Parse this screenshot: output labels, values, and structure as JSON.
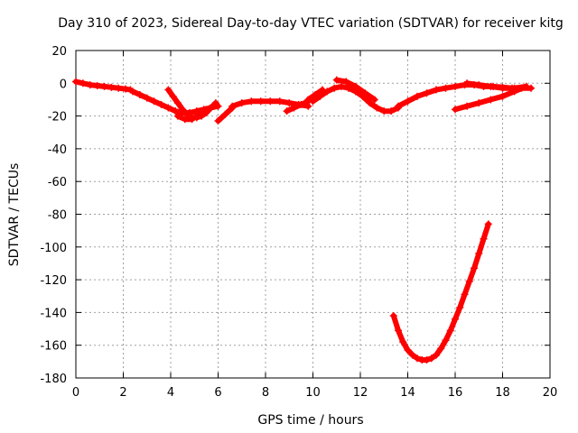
{
  "chart_data": {
    "type": "scatter",
    "title": "Day 310 of 2023, Sidereal Day-to-day VTEC variation (SDTVAR) for receiver kitg",
    "xlabel": "GPS time / hours",
    "ylabel": "SDTVAR / TECUs",
    "xlim": [
      0,
      20
    ],
    "ylim": [
      -180,
      20
    ],
    "xticks": [
      "0",
      "2",
      "4",
      "6",
      "8",
      "10",
      "12",
      "14",
      "16",
      "18",
      "20"
    ],
    "yticks": [
      "20",
      "0",
      "-20",
      "-40",
      "-60",
      "-80",
      "-100",
      "-120",
      "-140",
      "-160",
      "-180"
    ],
    "grid": true,
    "marker_color": "#ff0000",
    "series": [
      {
        "x": [
          0.0,
          0.3,
          0.6,
          0.9,
          1.2,
          1.5,
          1.8,
          2.1,
          2.3
        ],
        "y": [
          1,
          0,
          -1,
          -1.5,
          -2,
          -2.5,
          -3,
          -3.5,
          -4
        ]
      },
      {
        "x": [
          2.4,
          2.7,
          3.0,
          3.3,
          3.6,
          3.9,
          4.2,
          4.5,
          4.8,
          5.1,
          5.4,
          5.7,
          6.0
        ],
        "y": [
          -5,
          -7,
          -9,
          -11,
          -13,
          -15,
          -17,
          -18,
          -18,
          -17,
          -16,
          -15,
          -14
        ]
      },
      {
        "x": [
          3.9,
          4.1,
          4.3,
          4.5,
          4.7,
          4.9,
          5.1,
          5.3,
          5.5,
          5.7,
          5.9
        ],
        "y": [
          -4,
          -8,
          -12,
          -16,
          -19,
          -21,
          -21,
          -20,
          -18,
          -15,
          -12
        ]
      },
      {
        "x": [
          4.3,
          4.6,
          4.9,
          5.2,
          5.5,
          5.8
        ],
        "y": [
          -20,
          -22,
          -22,
          -19,
          -16,
          -14
        ]
      },
      {
        "x": [
          6.0,
          6.3,
          6.6
        ],
        "y": [
          -23,
          -19,
          -15
        ]
      },
      {
        "x": [
          6.6,
          7.0,
          7.4,
          7.8,
          8.2,
          8.6,
          9.0,
          9.4,
          9.8
        ],
        "y": [
          -14,
          -12,
          -11,
          -11,
          -11,
          -11,
          -12,
          -13,
          -14
        ]
      },
      {
        "x": [
          8.9,
          9.2,
          9.5,
          9.8
        ],
        "y": [
          -17,
          -15,
          -13,
          -11
        ]
      },
      {
        "x": [
          9.8,
          10.1,
          10.4
        ],
        "y": [
          -10,
          -7,
          -4
        ]
      },
      {
        "x": [
          10.0,
          10.3,
          10.6,
          10.9,
          11.2,
          11.5,
          11.8,
          12.1,
          12.4,
          12.7,
          13.0,
          13.3,
          13.6
        ],
        "y": [
          -11,
          -8,
          -5,
          -3,
          -2,
          -3,
          -5,
          -8,
          -12,
          -15,
          -17,
          -17,
          -15
        ]
      },
      {
        "x": [
          11.0,
          11.4,
          11.8,
          12.2,
          12.6
        ],
        "y": [
          2,
          1,
          -2,
          -6,
          -10
        ]
      },
      {
        "x": [
          13.6,
          14.0,
          14.4,
          14.8,
          15.2,
          15.6,
          16.0,
          16.4,
          16.8,
          17.2,
          17.6,
          18.0,
          18.4,
          18.8,
          19.2
        ],
        "y": [
          -14,
          -11,
          -8,
          -6,
          -4,
          -3,
          -2,
          -1,
          -1,
          -2,
          -2,
          -2.5,
          -3,
          -3,
          -3
        ]
      },
      {
        "x": [
          16.0,
          16.5,
          17.0,
          17.5,
          18.0,
          18.5,
          19.0
        ],
        "y": [
          -16,
          -14,
          -12,
          -10,
          -8,
          -5,
          -2
        ]
      },
      {
        "x": [
          16.5,
          17.0,
          17.5,
          18.0,
          18.5,
          19.0
        ],
        "y": [
          0,
          -1,
          -2,
          -3,
          -3,
          -2
        ]
      },
      {
        "x": [
          13.4,
          13.6,
          13.8,
          14.0,
          14.2,
          14.4,
          14.6,
          14.8,
          15.0,
          15.2,
          15.4,
          15.6,
          15.8,
          16.0,
          16.2,
          16.4,
          16.6,
          16.8,
          17.0,
          17.2,
          17.4
        ],
        "y": [
          -142,
          -151,
          -158,
          -163,
          -166,
          -168,
          -169,
          -169,
          -168,
          -166,
          -162,
          -157,
          -151,
          -144,
          -137,
          -129,
          -121,
          -113,
          -104,
          -95,
          -86
        ]
      }
    ]
  }
}
